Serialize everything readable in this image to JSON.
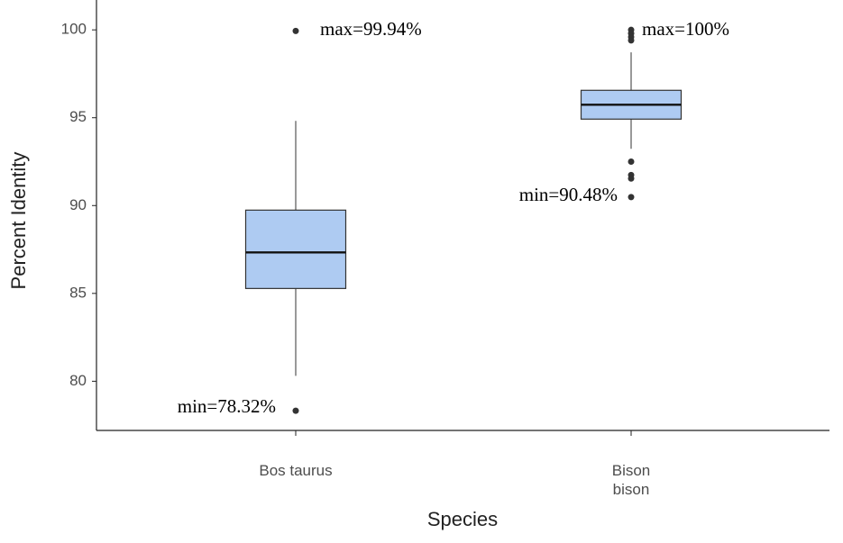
{
  "chart_data": {
    "type": "box",
    "x_label": "Species",
    "y_label": "Percent Identity",
    "categories": [
      "Bos taurus",
      "Bison\nbison"
    ],
    "color": "#aecbf2",
    "boxes": [
      {
        "whisker_low": 80.31,
        "q1": 85.28,
        "median": 87.33,
        "q3": 89.74,
        "whisker_high": 94.82,
        "outliers": [
          99.94,
          78.32
        ]
      },
      {
        "whisker_low": 93.23,
        "q1": 94.92,
        "median": 95.74,
        "q3": 96.56,
        "whisker_high": 98.72,
        "outliers": [
          100,
          99.8,
          99.6,
          99.4,
          92.5,
          91.74,
          91.54,
          90.48
        ]
      }
    ],
    "annotations": [
      "max=99.94%",
      "min=78.32%",
      "max=100%",
      "min=90.48%"
    ],
    "ylim": [
      77.2,
      101.7
    ],
    "yticks": [
      80,
      85,
      90,
      95,
      100
    ],
    "grid": false
  }
}
